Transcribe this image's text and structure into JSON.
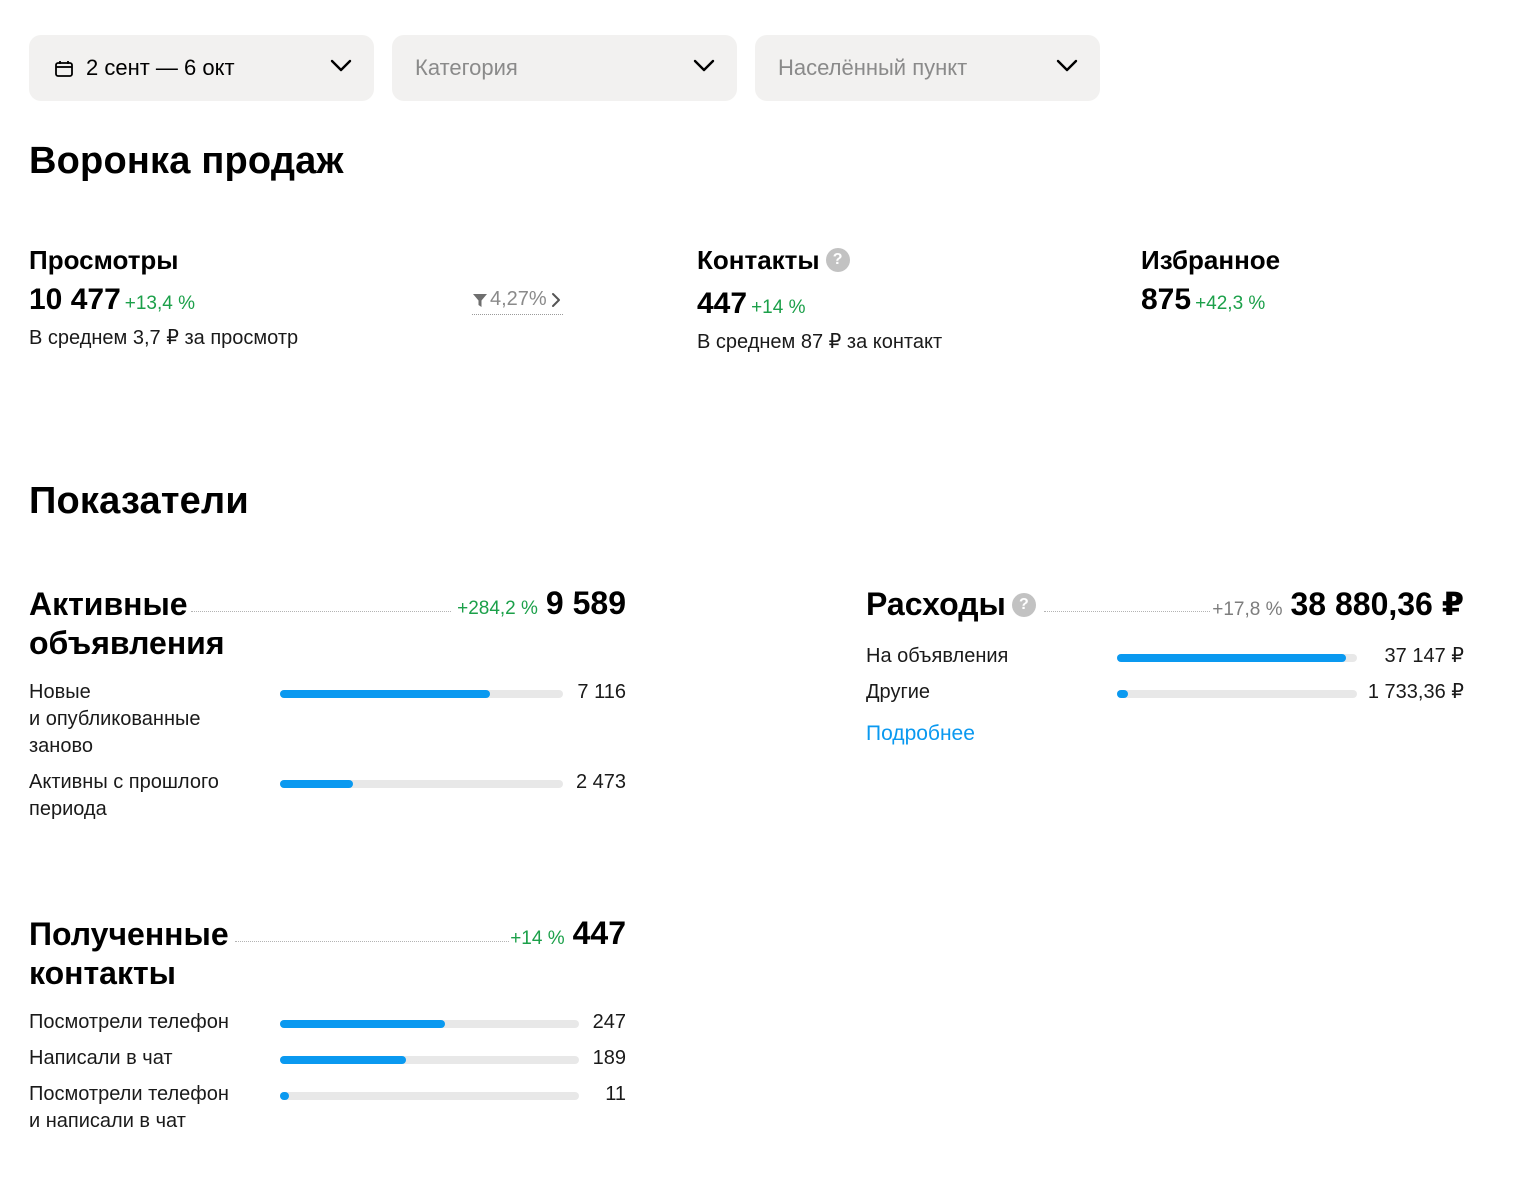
{
  "filters": {
    "date": "2 сент — 6 окт",
    "category": "Категория",
    "city": "Населённый пункт"
  },
  "funnel": {
    "title": "Воронка продаж",
    "views": {
      "label": "Просмотры",
      "value": "10 477",
      "delta": "+13,4 %",
      "sub": "В среднем 3,7 ₽ за просмотр"
    },
    "conversion": "4,27%",
    "contacts": {
      "label": "Контакты",
      "value": "447",
      "delta": "+14 %",
      "sub": "В среднем 87 ₽ за контакт"
    },
    "favorites": {
      "label": "Избранное",
      "value": "875",
      "delta": "+42,3 %"
    }
  },
  "metrics": {
    "title": "Показатели",
    "active": {
      "title_line1": "Активные",
      "title_line2": "объявления",
      "delta": "+284,2 %",
      "total": "9 589",
      "rows": [
        {
          "label1": "Новые",
          "label2": "и опубликованные",
          "label3": "заново",
          "value": "7 116",
          "fraction": 0.742
        },
        {
          "label1": "Активны с прошлого",
          "label2": "периода",
          "value": "2 473",
          "fraction": 0.258
        }
      ]
    },
    "contacts": {
      "title_line1": "Полученные",
      "title_line2": "контакты",
      "delta": "+14 %",
      "total": "447",
      "rows": [
        {
          "label1": "Посмотрели телефон",
          "value": "247",
          "fraction": 0.553
        },
        {
          "label1": "Написали в чат",
          "value": "189",
          "fraction": 0.423
        },
        {
          "label1": "Посмотрели телефон",
          "label2": "и написали в чат",
          "value": "11",
          "fraction": 0.025
        }
      ]
    },
    "expenses": {
      "title": "Расходы",
      "delta": "+17,8 %",
      "total": "38 880,36 ₽",
      "rows": [
        {
          "label1": "На объявления",
          "value": "37 147 ₽",
          "fraction": 0.955
        },
        {
          "label1": "Другие",
          "value": "1 733,36 ₽",
          "fraction": 0.045
        }
      ],
      "more": "Подробнее"
    }
  },
  "colors": {
    "accent": "#0a99f0",
    "positive": "#1ca04a",
    "filter_bg": "#f2f1f0"
  }
}
